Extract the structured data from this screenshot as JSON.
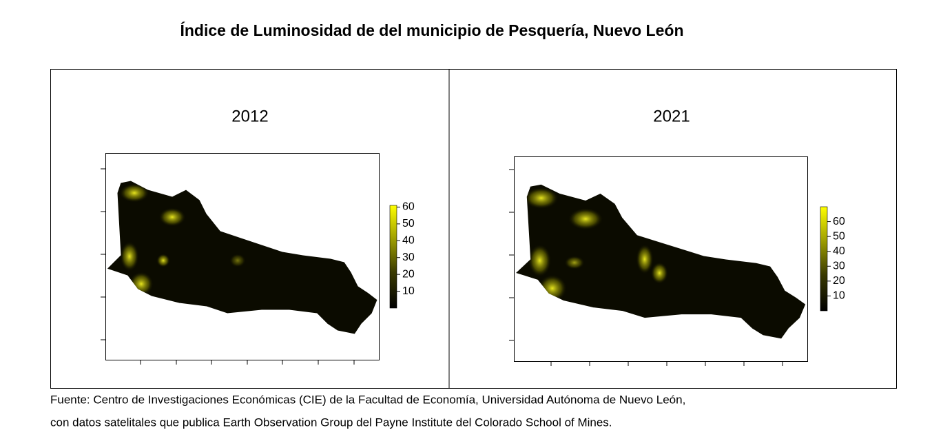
{
  "title": "Índice de Luminosidad de del municipio de Pesquería, Nuevo León",
  "panels": [
    {
      "title": "2012",
      "colorbar": {
        "lim": [
          0,
          61
        ],
        "ticks": [
          10,
          20,
          30,
          40,
          50,
          60
        ]
      }
    },
    {
      "title": "2021",
      "colorbar": {
        "lim": [
          0,
          70
        ],
        "ticks": [
          10,
          20,
          30,
          40,
          50,
          60
        ]
      }
    }
  ],
  "source": [
    "Fuente: Centro de Investigaciones Económicas (CIE) de la Facultad de Economía, Universidad Autónoma de Nuevo León,",
    "con datos satelitales que publica Earth Observation Group del Payne Institute del Colorado School of Mines."
  ]
}
